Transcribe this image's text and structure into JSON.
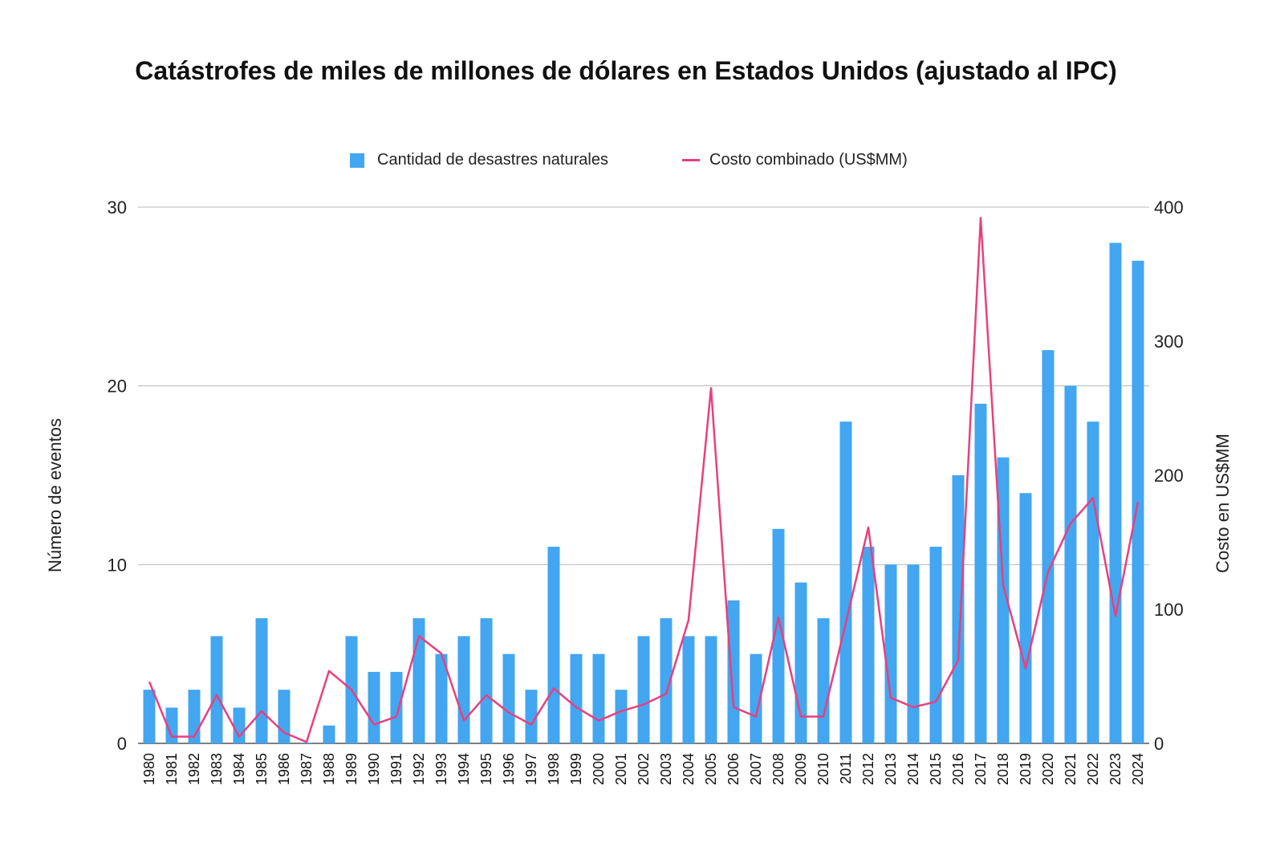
{
  "chart_data": {
    "type": "bar",
    "title": "Catástrofes de miles de millones de dólares en Estados Unidos (ajustado al IPC)",
    "ylabel": "Número de eventos",
    "y2label": "Costo en US$MM",
    "ylim": [
      0,
      30
    ],
    "y2lim": [
      0,
      400
    ],
    "yticks": [
      "0",
      "10",
      "20",
      "30"
    ],
    "y2ticks": [
      "0",
      "100",
      "200",
      "300",
      "400"
    ],
    "legend_position": "top",
    "grid": true,
    "categories": [
      "1980",
      "1981",
      "1982",
      "1983",
      "1984",
      "1985",
      "1986",
      "1987",
      "1988",
      "1989",
      "1990",
      "1991",
      "1992",
      "1993",
      "1994",
      "1995",
      "1996",
      "1997",
      "1998",
      "1999",
      "2000",
      "2001",
      "2002",
      "2003",
      "2004",
      "2005",
      "2006",
      "2007",
      "2008",
      "2009",
      "2010",
      "2011",
      "2012",
      "2013",
      "2014",
      "2015",
      "2016",
      "2017",
      "2018",
      "2019",
      "2020",
      "2021",
      "2022",
      "2023",
      "2024"
    ],
    "series": [
      {
        "name": "Cantidad de desastres naturales",
        "type": "bar",
        "axis": "left",
        "color": "#42a6f1",
        "values": [
          3,
          2,
          3,
          6,
          2,
          7,
          3,
          0,
          1,
          6,
          4,
          4,
          7,
          5,
          6,
          7,
          5,
          3,
          11,
          5,
          5,
          3,
          6,
          7,
          6,
          6,
          8,
          5,
          12,
          9,
          7,
          18,
          11,
          10,
          10,
          11,
          15,
          19,
          16,
          14,
          22,
          20,
          18,
          28,
          27
        ]
      },
      {
        "name": "Costo combinado (US$MM)",
        "type": "line",
        "axis": "right",
        "color": "#e8407e",
        "values": [
          46,
          5,
          5,
          36,
          5,
          24,
          8,
          1,
          54,
          40,
          14,
          20,
          80,
          67,
          17,
          36,
          23,
          14,
          41,
          27,
          17,
          24,
          29,
          37,
          92,
          265,
          27,
          20,
          94,
          20,
          20,
          90,
          161,
          34,
          27,
          31,
          62,
          392,
          118,
          56,
          128,
          164,
          183,
          95,
          180
        ]
      }
    ]
  }
}
